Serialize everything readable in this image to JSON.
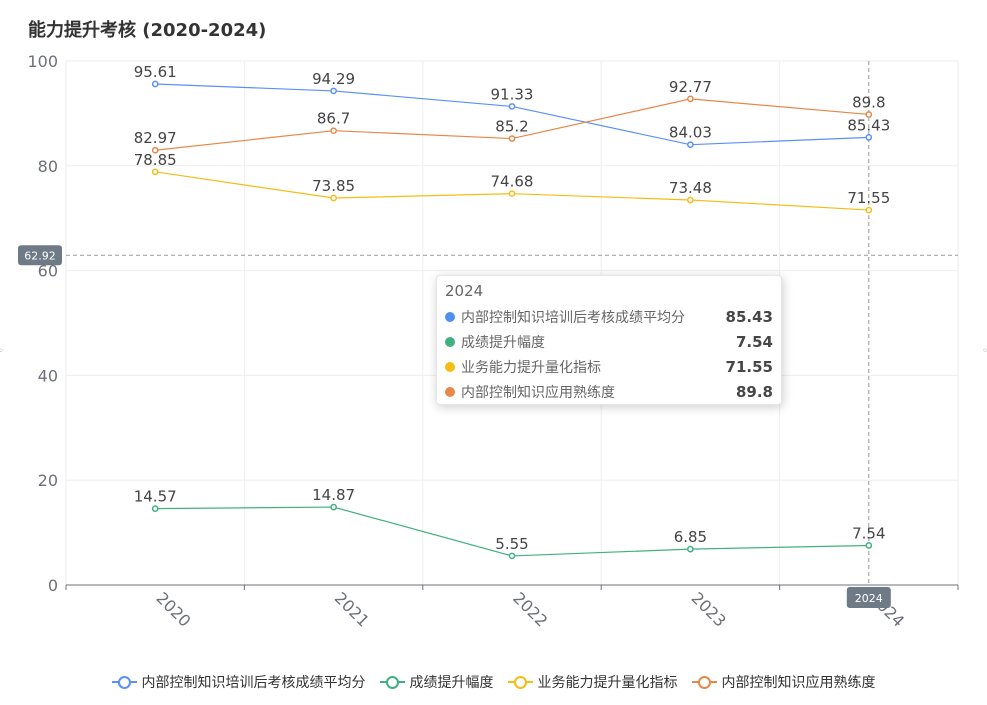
{
  "title": "能力提升考核 (2020-2024)",
  "chart_data": {
    "type": "line",
    "title": "能力提升考核 (2020-2024)",
    "categories": [
      "2020",
      "2021",
      "2022",
      "2023",
      "2024"
    ],
    "ylim": [
      0,
      100
    ],
    "yticks": [
      0,
      20,
      40,
      60,
      80,
      100
    ],
    "series": [
      {
        "name": "内部控制知识培训后考核成绩平均分",
        "color": "#5b8ff9",
        "values": [
          95.61,
          94.29,
          91.33,
          84.03,
          85.43
        ]
      },
      {
        "name": "成绩提升幅度",
        "color": "#3fb17e",
        "values": [
          14.57,
          14.87,
          5.55,
          6.85,
          7.54
        ]
      },
      {
        "name": "业务能力提升量化指标",
        "color": "#f6bd16",
        "values": [
          78.85,
          73.85,
          74.68,
          73.48,
          71.55
        ]
      },
      {
        "name": "内部控制知识应用熟练度",
        "color": "#e8874a",
        "values": [
          82.97,
          86.7,
          85.2,
          92.77,
          89.8
        ]
      }
    ],
    "crosshair": {
      "y_value": 62.92,
      "y_label": "62.92",
      "x_category": "2024",
      "x_label": "2024"
    },
    "legend_position": "bottom-center"
  },
  "tooltip": {
    "title": "2024",
    "rows": [
      {
        "name": "内部控制知识培训后考核成绩平均分",
        "value": "85.43",
        "color": "#4f8ff0"
      },
      {
        "name": "成绩提升幅度",
        "value": "7.54",
        "color": "#3fb17e"
      },
      {
        "name": "业务能力提升量化指标",
        "value": "71.55",
        "color": "#f6bd16"
      },
      {
        "name": "内部控制知识应用熟练度",
        "value": "89.8",
        "color": "#e8874a"
      }
    ]
  },
  "legend": [
    {
      "name": "内部控制知识培训后考核成绩平均分",
      "color": "#5b8ff9"
    },
    {
      "name": "成绩提升幅度",
      "color": "#3fb17e"
    },
    {
      "name": "业务能力提升量化指标",
      "color": "#f6bd16"
    },
    {
      "name": "内部控制知识应用熟练度",
      "color": "#e8874a"
    }
  ]
}
